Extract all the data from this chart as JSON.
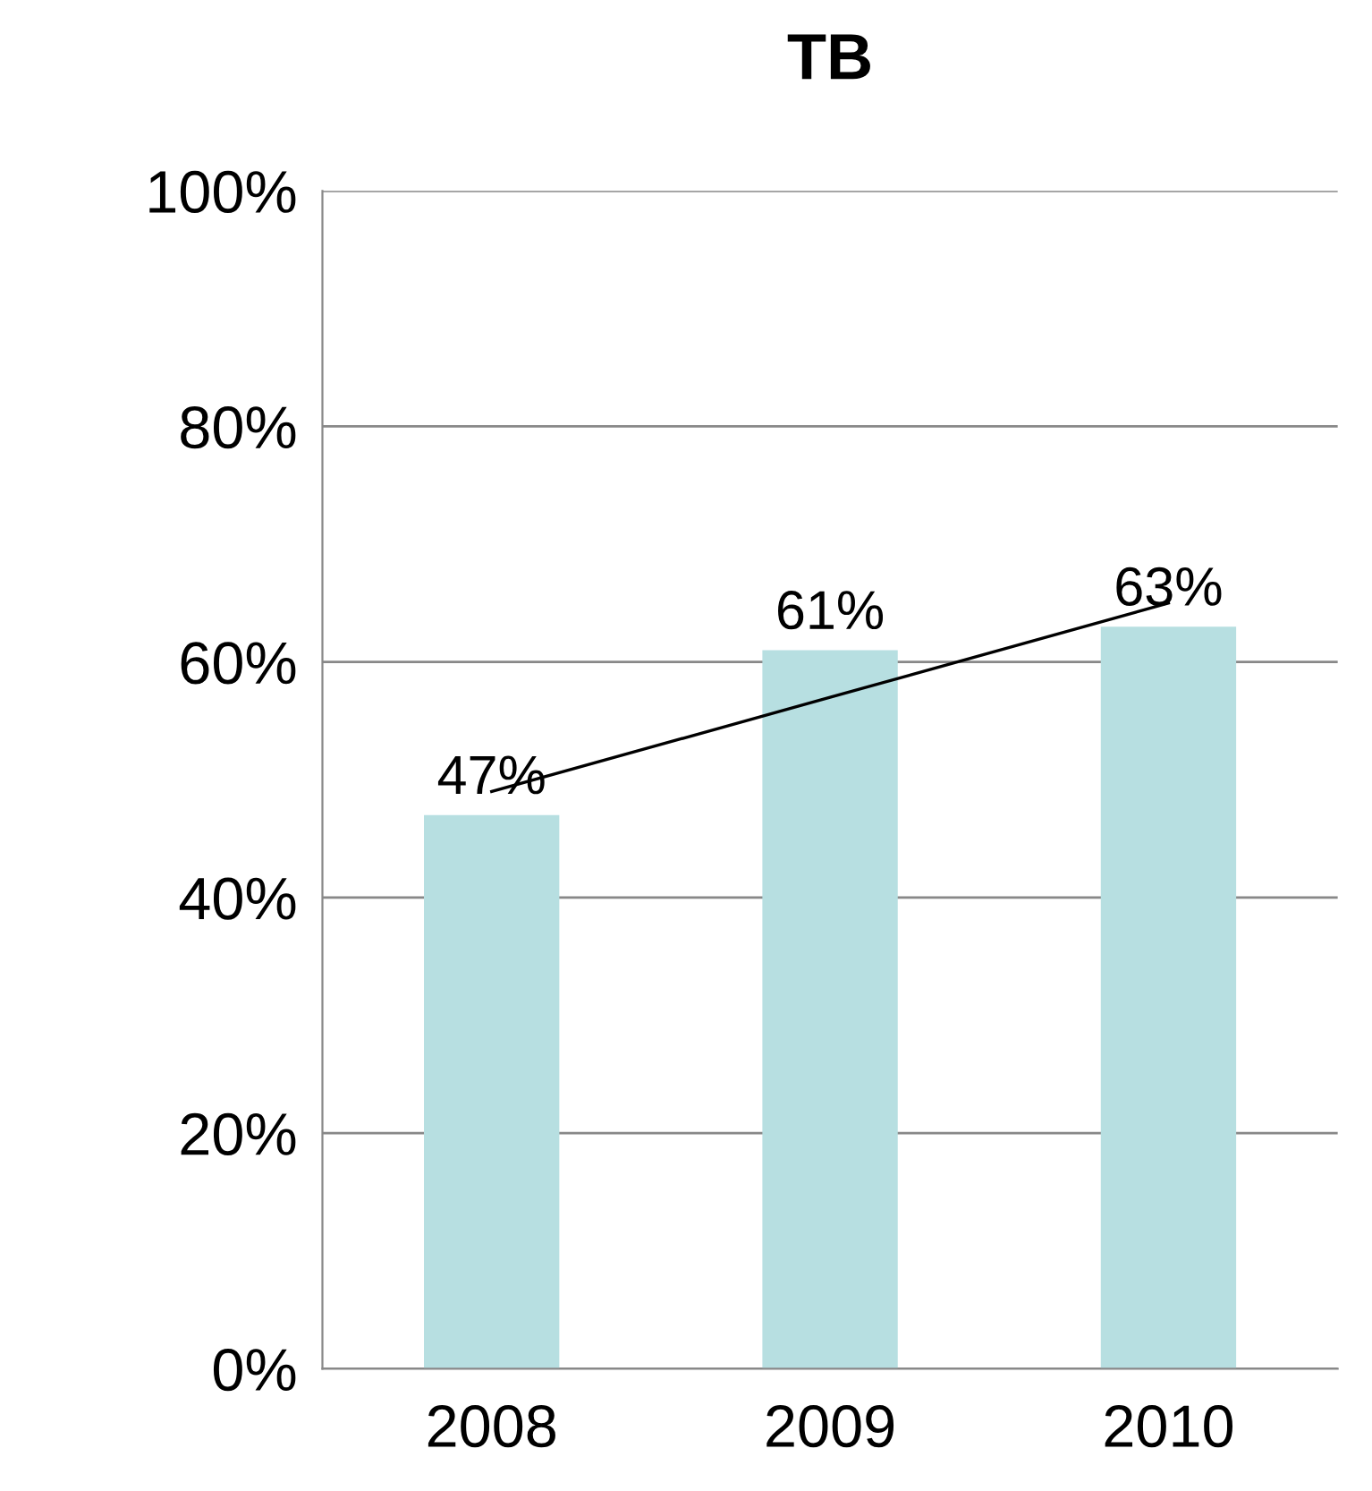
{
  "chart_data": {
    "type": "bar",
    "title": "TB",
    "categories": [
      "2008",
      "2009",
      "2010"
    ],
    "series": [
      {
        "color": "#b7dfe1",
        "values": [
          47,
          61,
          63
        ],
        "value_labels": [
          "47%",
          "61%",
          "63%"
        ]
      },
      {
        "type": "line",
        "color": "#000000",
        "values": [
          49,
          57,
          65
        ],
        "marker": "none"
      }
    ],
    "ylim": [
      0,
      100
    ],
    "yticks": [
      {
        "value": 0,
        "label": "0%"
      },
      {
        "value": 20,
        "label": "20%"
      },
      {
        "value": 40,
        "label": "40%"
      },
      {
        "value": 60,
        "label": "60%"
      },
      {
        "value": 80,
        "label": "80%"
      },
      {
        "value": 100,
        "label": "100%"
      }
    ],
    "grid": "y",
    "legend": false
  }
}
